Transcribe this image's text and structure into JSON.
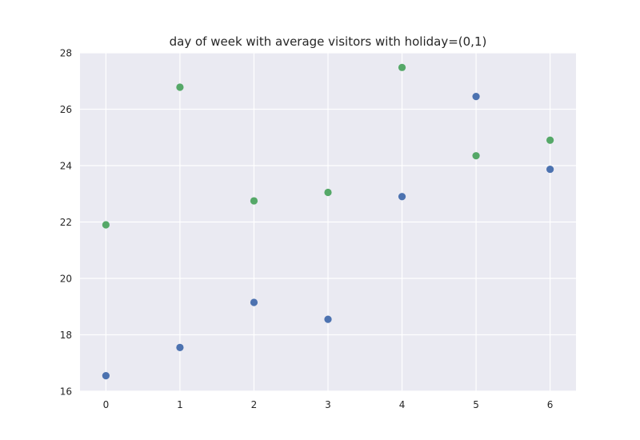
{
  "chart_data": {
    "type": "scatter",
    "title": "day of week with average visitors with holiday=(0,1)",
    "xlabel": "",
    "ylabel": "",
    "x": [
      0,
      1,
      2,
      3,
      4,
      5,
      6
    ],
    "xlim": [
      -0.35,
      6.35
    ],
    "ylim": [
      16,
      28
    ],
    "xticks": [
      0,
      1,
      2,
      3,
      4,
      5,
      6
    ],
    "yticks": [
      16,
      18,
      20,
      22,
      24,
      26,
      28
    ],
    "grid": true,
    "legend": "none",
    "background_color": "#eaeaf2",
    "grid_color": "#ffffff",
    "series": [
      {
        "color": "#4c72b0",
        "values": [
          16.55,
          17.55,
          19.15,
          18.55,
          22.9,
          26.45,
          23.87
        ]
      },
      {
        "color": "#55a868",
        "values": [
          21.9,
          26.78,
          22.75,
          23.05,
          27.48,
          24.35,
          24.9
        ]
      }
    ]
  }
}
